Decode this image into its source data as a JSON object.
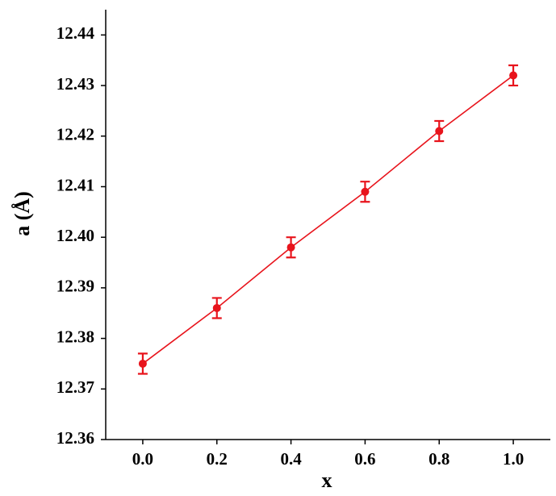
{
  "chart_data": {
    "type": "scatter",
    "x_label": "x",
    "y_label": "a (Å)",
    "x": [
      {
        "value": 0,
        "label": "0.0"
      },
      0.2,
      0.4,
      0.6,
      0.8,
      {
        "value": 1,
        "label": "1.0"
      }
    ],
    "series": [
      {
        "color": "#e8141c",
        "x": [
          0,
          0.2,
          0.4,
          0.6,
          0.8,
          1
        ],
        "values": [
          12.375,
          12.386,
          12.398,
          12.409,
          12.421,
          12.432
        ],
        "errors": [
          0.002,
          0.002,
          0.002,
          0.002,
          0.002,
          0.002
        ]
      }
    ],
    "connect": true,
    "xlim": [
      -0.1,
      1.1
    ],
    "ylim": [
      12.36,
      12.445
    ],
    "xticks": [
      {
        "value": 0,
        "label": "0.0"
      },
      0.2,
      0.4,
      0.6,
      0.8,
      {
        "value": 1,
        "label": "1.0"
      }
    ],
    "yticks": [
      12.36,
      12.37,
      12.38,
      12.39,
      {
        "value": 12.4,
        "label": "12.40"
      },
      12.41,
      12.42,
      12.43,
      12.44
    ]
  }
}
